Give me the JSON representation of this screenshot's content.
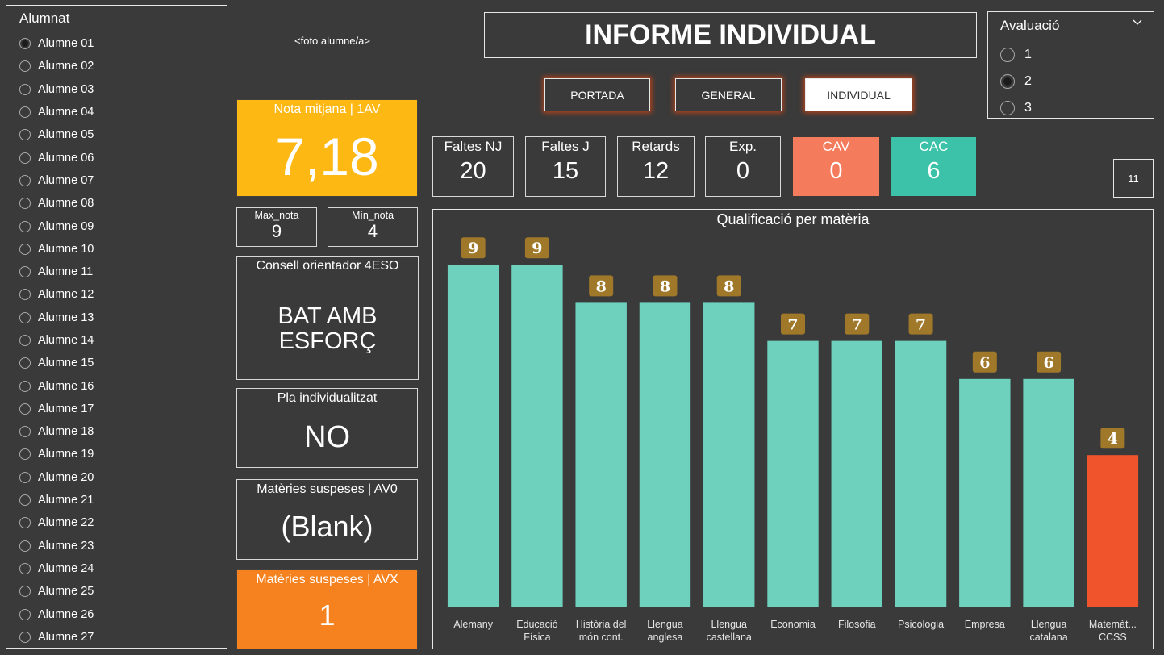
{
  "alumnat": {
    "title": "Alumnat",
    "students": [
      "Alumne 01",
      "Alumne 02",
      "Alumne 03",
      "Alumne 04",
      "Alumne 05",
      "Alumne 06",
      "Alumne 07",
      "Alumne 08",
      "Alumne 09",
      "Alumne 10",
      "Alumne 11",
      "Alumne 12",
      "Alumne 13",
      "Alumne 14",
      "Alumne 15",
      "Alumne 16",
      "Alumne 17",
      "Alumne 18",
      "Alumne 19",
      "Alumne 20",
      "Alumne 21",
      "Alumne 22",
      "Alumne 23",
      "Alumne 24",
      "Alumne 25",
      "Alumne 26",
      "Alumne 27"
    ],
    "selected_index": 0
  },
  "photo_placeholder": "<foto alumne/a>",
  "header": {
    "title": "INFORME INDIVIDUAL"
  },
  "nav": {
    "portada": "PORTADA",
    "general": "GENERAL",
    "individual": "INDIVIDUAL"
  },
  "avaluacio": {
    "title": "Avaluació",
    "options": [
      "1",
      "2",
      "3"
    ],
    "selected_index": 1
  },
  "nota_mitjana": {
    "label": "Nota mitjana | 1AV",
    "value": "7,18"
  },
  "max_nota": {
    "label": "Max_nota",
    "value": "9"
  },
  "min_nota": {
    "label": "Mín_nota",
    "value": "4"
  },
  "consell": {
    "label": "Consell orientador 4ESO",
    "value": "BAT AMB ESFORÇ"
  },
  "pla": {
    "label": "Pla individualitzat",
    "value": "NO"
  },
  "suspeses_av0": {
    "label": "Matèries suspeses | AV0",
    "value": "(Blank)"
  },
  "suspeses_avx": {
    "label": "Matèries suspeses | AVX",
    "value": "1"
  },
  "stats": {
    "faltes_nj": {
      "label": "Faltes NJ",
      "value": "20"
    },
    "faltes_j": {
      "label": "Faltes J",
      "value": "15"
    },
    "retards": {
      "label": "Retards",
      "value": "12"
    },
    "exp": {
      "label": "Exp.",
      "value": "0"
    },
    "cav": {
      "label": "CAV",
      "value": "0"
    },
    "cac": {
      "label": "CAC",
      "value": "6"
    }
  },
  "page_number": "11",
  "colors": {
    "background": "#3a3a3a",
    "bar_pass": "#6dd1be",
    "bar_fail": "#f0542c",
    "data_label_bg": "#a0782a",
    "nota_bg": "#fdb813",
    "suspeses_bg": "#f5821f",
    "cav_bg": "#f47b5b",
    "cac_bg": "#3cc2a8"
  },
  "chart_data": {
    "type": "bar",
    "title": "Qualificació per matèria",
    "categories": [
      [
        "Alemany"
      ],
      [
        "Educació",
        "Física"
      ],
      [
        "Història del",
        "món cont."
      ],
      [
        "Llengua",
        "anglesa"
      ],
      [
        "Llengua",
        "castellana"
      ],
      [
        "Economia"
      ],
      [
        "Filosofia"
      ],
      [
        "Psicologia"
      ],
      [
        "Empresa"
      ],
      [
        "Llengua",
        "catalana"
      ],
      [
        "Matemàt...",
        "CCSS"
      ]
    ],
    "values": [
      9,
      9,
      8,
      8,
      8,
      7,
      7,
      7,
      6,
      6,
      4
    ],
    "pass_threshold": 5,
    "ylim": [
      0,
      10
    ],
    "xlabel": "",
    "ylabel": "",
    "grid": false
  }
}
